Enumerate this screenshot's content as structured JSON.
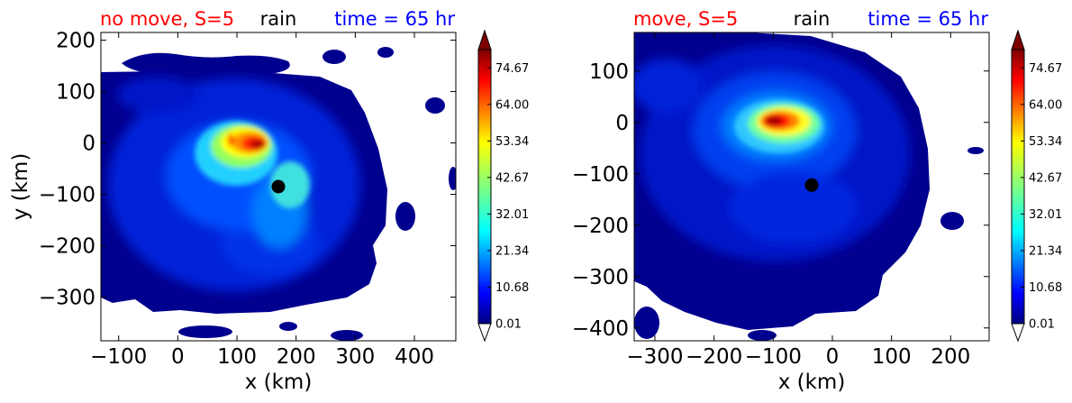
{
  "chart_data": [
    {
      "type": "heatmap",
      "title_left": "no move, S=5",
      "title_center": "rain",
      "title_right": "time = 65 hr",
      "xlabel": "x (km)",
      "ylabel": "y (km)",
      "xlim": [
        -130,
        470
      ],
      "ylim": [
        -385,
        215
      ],
      "xticks": [
        -100,
        0,
        100,
        200,
        300,
        400
      ],
      "yticks": [
        -300,
        -200,
        -100,
        0,
        100,
        200
      ],
      "center_marker": [
        170,
        -85
      ],
      "rain_max": [
        135,
        0
      ],
      "colorbar": {
        "min": 0.01,
        "max": 80,
        "ticks": [
          "74.67",
          "64.00",
          "53.34",
          "42.67",
          "32.01",
          "21.34",
          "10.68",
          "0.01"
        ],
        "extend": "both"
      }
    },
    {
      "type": "heatmap",
      "title_left": "move, S=5",
      "title_center": "rain",
      "title_right": "time = 65 hr",
      "xlabel": "x (km)",
      "ylabel": "",
      "xlim": [
        -335,
        265
      ],
      "ylim": [
        -425,
        175
      ],
      "xticks": [
        -300,
        -200,
        -100,
        0,
        100,
        200
      ],
      "yticks": [
        -400,
        -300,
        -200,
        -100,
        0,
        100
      ],
      "center_marker": [
        -35,
        -122
      ],
      "rain_max": [
        -95,
        5
      ],
      "colorbar": {
        "min": 0.01,
        "max": 80,
        "ticks": [
          "74.67",
          "64.00",
          "53.34",
          "42.67",
          "32.01",
          "21.34",
          "10.68",
          "0.01"
        ],
        "extend": "both"
      }
    }
  ],
  "colors": {
    "title_left": "#ff0000",
    "title_center": "#000000",
    "title_right": "#0000ff",
    "field_background": "#00008f",
    "marker": "#000000"
  }
}
